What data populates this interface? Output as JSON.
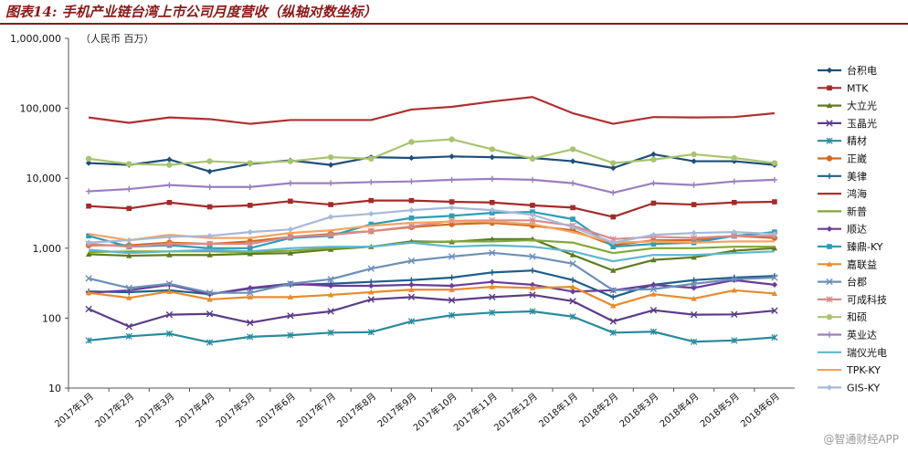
{
  "header": {
    "title": "图表14: 手机产业链台湾上市公司月度营收（纵轴对数坐标）",
    "unit": "（人民币  百万）"
  },
  "watermark": "@智通财经APP",
  "chart_data": {
    "type": "line",
    "title": "图表14: 手机产业链台湾上市公司月度营收（纵轴对数坐标）",
    "ylabel": "（人民币  百万）",
    "yscale": "log",
    "ylim": [
      10,
      1000000
    ],
    "yticks": [
      "10",
      "100",
      "1,000",
      "10,000",
      "100,000",
      "1,000,000"
    ],
    "grid": false,
    "legend": "right",
    "categories": [
      "2017年1月",
      "2017年2月",
      "2017年3月",
      "2017年4月",
      "2017年5月",
      "2017年6月",
      "2017年7月",
      "2017年8月",
      "2017年9月",
      "2017年10月",
      "2017年11月",
      "2017年12月",
      "2018年1月",
      "2018年2月",
      "2018年3月",
      "2018年4月",
      "2018年5月",
      "2018年6月"
    ],
    "series": [
      {
        "name": "台积电",
        "color": "#1F4E79",
        "marker": "diamond",
        "values": [
          16500,
          15500,
          18500,
          12500,
          16000,
          18000,
          15500,
          20000,
          19500,
          20500,
          20000,
          19500,
          17500,
          14000,
          22000,
          17500,
          17500,
          15500
        ]
      },
      {
        "name": "MTK",
        "color": "#A52A2A",
        "marker": "square",
        "values": [
          4000,
          3700,
          4500,
          3900,
          4100,
          4700,
          4200,
          4800,
          4800,
          4600,
          4500,
          4100,
          3800,
          2800,
          4400,
          4200,
          4500,
          4600
        ]
      },
      {
        "name": "大立光",
        "color": "#5E7A1F",
        "marker": "triangle",
        "values": [
          820,
          780,
          800,
          800,
          830,
          850,
          960,
          1050,
          1250,
          1230,
          1350,
          1350,
          800,
          480,
          680,
          740,
          920,
          1000
        ]
      },
      {
        "name": "玉晶光",
        "color": "#5B3C88",
        "marker": "x",
        "values": [
          135,
          76,
          112,
          115,
          86,
          108,
          125,
          185,
          200,
          180,
          200,
          215,
          175,
          90,
          130,
          112,
          113,
          128
        ]
      },
      {
        "name": "精材",
        "color": "#2A8A9E",
        "marker": "star",
        "values": [
          48,
          55,
          60,
          45,
          54,
          57,
          62,
          63,
          90,
          110,
          120,
          125,
          105,
          62,
          64,
          46,
          48,
          53
        ]
      },
      {
        "name": "正崴",
        "color": "#D2691E",
        "marker": "circle",
        "values": [
          1100,
          1100,
          1200,
          1150,
          1250,
          1450,
          1600,
          1750,
          2000,
          2200,
          2300,
          2100,
          1800,
          1100,
          1300,
          1300,
          1500,
          1400
        ]
      },
      {
        "name": "美律",
        "color": "#1F5F8B",
        "marker": "plus",
        "values": [
          240,
          235,
          250,
          220,
          265,
          300,
          310,
          330,
          350,
          380,
          450,
          480,
          350,
          200,
          300,
          350,
          380,
          400
        ]
      },
      {
        "name": "鸿海",
        "color": "#B03030",
        "marker": "none",
        "values": [
          74000,
          62000,
          74000,
          70000,
          60000,
          68000,
          68000,
          68000,
          96000,
          105000,
          125000,
          145000,
          85000,
          60000,
          75000,
          74000,
          75000,
          85000
        ]
      },
      {
        "name": "新普",
        "color": "#7FA832",
        "marker": "none",
        "values": [
          880,
          900,
          900,
          900,
          880,
          920,
          1000,
          1050,
          1200,
          1250,
          1250,
          1300,
          1200,
          850,
          1000,
          1000,
          1050,
          1050
        ]
      },
      {
        "name": "顺达",
        "color": "#6A3D9A",
        "marker": "diamond",
        "values": [
          230,
          250,
          300,
          220,
          270,
          310,
          290,
          290,
          300,
          290,
          330,
          300,
          240,
          250,
          300,
          270,
          350,
          300
        ]
      },
      {
        "name": "臻鼎-KY",
        "color": "#2E9DB8",
        "marker": "square",
        "values": [
          1500,
          1050,
          1100,
          1000,
          1000,
          1400,
          1500,
          2200,
          2700,
          2900,
          3200,
          3300,
          2600,
          1050,
          1150,
          1200,
          1500,
          1700
        ]
      },
      {
        "name": "嘉联益",
        "color": "#E88B2D",
        "marker": "triangle",
        "values": [
          230,
          195,
          240,
          185,
          200,
          200,
          215,
          235,
          255,
          255,
          280,
          270,
          280,
          150,
          220,
          190,
          250,
          225
        ]
      },
      {
        "name": "台郡",
        "color": "#6D8FB8",
        "marker": "x",
        "values": [
          370,
          270,
          310,
          230,
          230,
          310,
          360,
          510,
          660,
          760,
          860,
          760,
          600,
          250,
          260,
          310,
          360,
          380
        ]
      },
      {
        "name": "可成科技",
        "color": "#D98A8A",
        "marker": "star",
        "values": [
          1150,
          1050,
          1150,
          1150,
          1150,
          1450,
          1550,
          1750,
          2050,
          2450,
          2500,
          2500,
          2100,
          1350,
          1450,
          1400,
          1500,
          1500
        ]
      },
      {
        "name": "和硕",
        "color": "#A9C46F",
        "marker": "circle",
        "values": [
          19000,
          16000,
          15500,
          17500,
          16500,
          17500,
          20000,
          19000,
          33000,
          36000,
          26000,
          19000,
          26000,
          16500,
          18500,
          22000,
          19500,
          16500
        ]
      },
      {
        "name": "英业达",
        "color": "#9B7FC1",
        "marker": "plus",
        "values": [
          6500,
          7000,
          8000,
          7500,
          7500,
          8500,
          8500,
          8800,
          9000,
          9500,
          9800,
          9500,
          8500,
          6200,
          8500,
          8000,
          9000,
          9500
        ]
      },
      {
        "name": "瑞仪光电",
        "color": "#5FB7CF",
        "marker": "none",
        "values": [
          950,
          850,
          900,
          950,
          900,
          1000,
          1050,
          1050,
          1200,
          1050,
          1100,
          1050,
          900,
          650,
          800,
          800,
          850,
          900
        ]
      },
      {
        "name": "TPK-KY",
        "color": "#F4A460",
        "marker": "none",
        "values": [
          1600,
          1300,
          1550,
          1400,
          1400,
          1650,
          1800,
          2100,
          2300,
          2400,
          2400,
          2200,
          1700,
          1200,
          1250,
          1200,
          1250,
          1250
        ]
      },
      {
        "name": "GIS-KY",
        "color": "#A8B8D8",
        "marker": "diamond",
        "values": [
          1200,
          1300,
          1450,
          1500,
          1700,
          1850,
          2800,
          3100,
          3500,
          3800,
          3500,
          3000,
          2000,
          1200,
          1550,
          1650,
          1700,
          1600
        ]
      }
    ]
  }
}
